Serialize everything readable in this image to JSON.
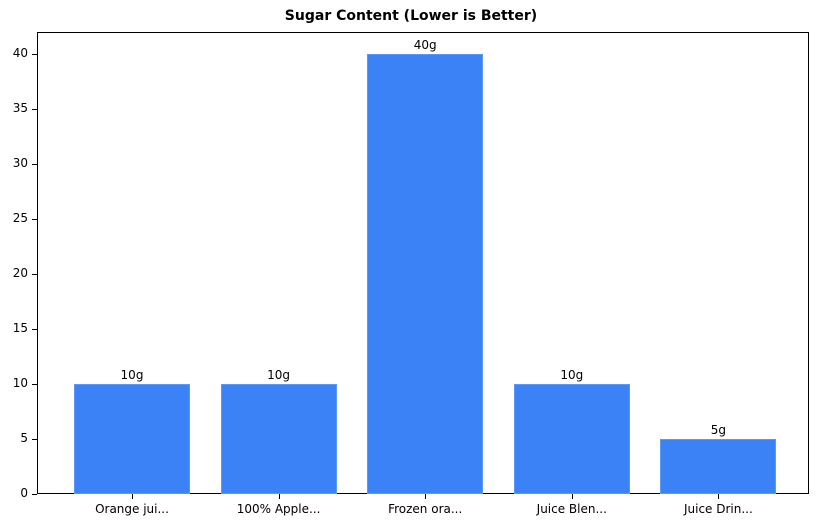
{
  "chart_data": {
    "type": "bar",
    "title": "Sugar Content (Lower is Better)",
    "xlabel": "",
    "ylabel": "",
    "categories": [
      "Orange jui...",
      "100% Apple...",
      "Frozen ora...",
      "Juice Blen...",
      "Juice Drin..."
    ],
    "values": [
      10,
      10,
      40,
      10,
      5
    ],
    "value_labels": [
      "10g",
      "10g",
      "40g",
      "10g",
      "5g"
    ],
    "ylim": [
      0,
      42
    ],
    "yticks": [
      0,
      5,
      10,
      15,
      20,
      25,
      30,
      35,
      40
    ],
    "grid": false,
    "legend": null,
    "bar_color": "#3b82f6"
  }
}
